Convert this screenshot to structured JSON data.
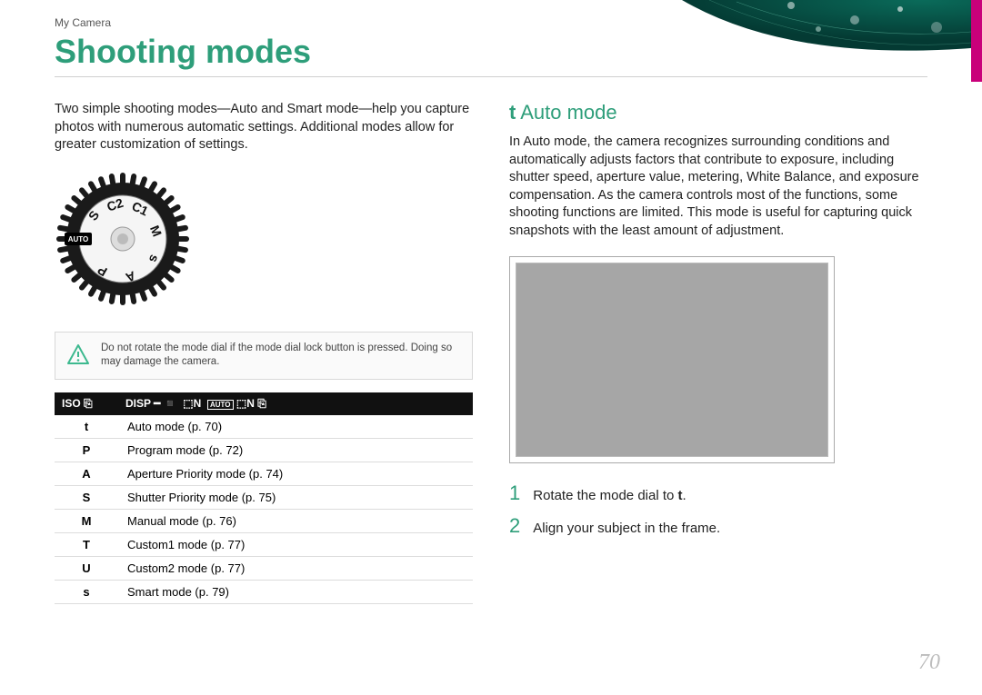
{
  "breadcrumb": "My Camera",
  "title": "Shooting modes",
  "intro": "Two simple shooting modes—Auto and Smart mode—help you capture photos with numerous automatic settings. Additional modes allow for greater customization of settings.",
  "dial": {
    "labels": [
      "S",
      "C2",
      "C1",
      "M",
      "s",
      "A",
      "P"
    ],
    "auto_label": "AUTO",
    "outer_fill": "#1a1a1a",
    "inner_fill": "#f5f5f5",
    "text_fill": "#111"
  },
  "note": "Do not rotate the mode dial if the mode dial lock button is pressed. Doing so may damage the camera.",
  "table": {
    "header_left": "ISO",
    "header_right": "DISP",
    "rows": [
      {
        "sym": "t",
        "desc": "Auto mode (p. 70)"
      },
      {
        "sym": "P",
        "desc": "Program mode (p. 72)"
      },
      {
        "sym": "A",
        "desc": "Aperture Priority mode (p. 74)"
      },
      {
        "sym": "S",
        "desc": "Shutter Priority mode (p. 75)"
      },
      {
        "sym": "M",
        "desc": "Manual mode (p. 76)"
      },
      {
        "sym": "T",
        "desc": "Custom1 mode (p. 77)"
      },
      {
        "sym": "U",
        "desc": "Custom2 mode (p. 77)"
      },
      {
        "sym": "s",
        "desc": "Smart mode (p. 79)"
      }
    ]
  },
  "section": {
    "prefix": "t",
    "title": "Auto mode",
    "body": "In Auto mode, the camera recognizes surrounding conditions and automatically adjusts factors that contribute to exposure, including shutter speed, aperture value, metering, White Balance, and exposure compensation. As the camera controls most of the functions, some shooting functions are limited. This mode is useful for capturing quick snapshots with the least amount of adjustment."
  },
  "steps": [
    {
      "n": "1",
      "text_prefix": "Rotate the mode dial to ",
      "sym": "t",
      "text_suffix": "."
    },
    {
      "n": "2",
      "text_prefix": "Align your subject in the frame.",
      "sym": "",
      "text_suffix": ""
    }
  ],
  "page_number": "70",
  "colors": {
    "accent": "#2e9e7a",
    "magenta": "#c9007a",
    "page_num": "#bdbdbd"
  },
  "viewfinder_bg": "#a6a6a6"
}
